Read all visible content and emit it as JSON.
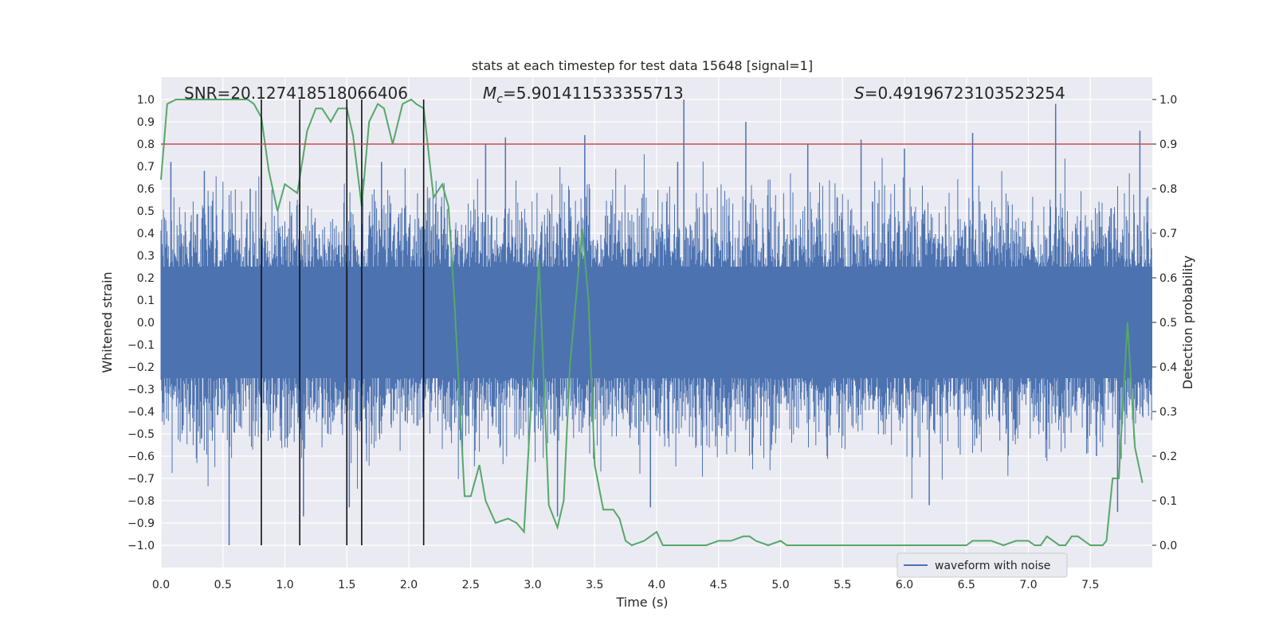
{
  "chart_data": {
    "type": "line",
    "title": "stats at each timestep for test data 15648 [signal=1]",
    "xlabel": "Time (s)",
    "ylabel_left": "Whitened strain",
    "ylabel_right": "Detection probability",
    "xlim": [
      0.0,
      8.0
    ],
    "ylim_left": [
      -1.1,
      1.1
    ],
    "ylim_right": [
      -0.05,
      1.05
    ],
    "x_ticks": [
      "0.0",
      "0.5",
      "1.0",
      "1.5",
      "2.0",
      "2.5",
      "3.0",
      "3.5",
      "4.0",
      "4.5",
      "5.0",
      "5.5",
      "6.0",
      "6.5",
      "7.0",
      "7.5"
    ],
    "y_ticks_left": [
      "−1.0",
      "−0.9",
      "−0.8",
      "−0.7",
      "−0.6",
      "−0.5",
      "−0.4",
      "−0.3",
      "−0.2",
      "−0.1",
      "0.0",
      "0.1",
      "0.2",
      "0.3",
      "0.4",
      "0.5",
      "0.6",
      "0.7",
      "0.8",
      "0.9",
      "1.0"
    ],
    "y_ticks_right": [
      "0.0",
      "0.1",
      "0.2",
      "0.3",
      "0.4",
      "0.5",
      "0.6",
      "0.7",
      "0.8",
      "0.9",
      "1.0"
    ],
    "annotations": {
      "snr_prefix": "SNR=",
      "snr_value": "20.127418518066406",
      "mc_var": "M",
      "mc_sub": "c",
      "mc_value": "=5.901411533355713",
      "s_var": "S",
      "s_value": "=0.49196723103523254"
    },
    "legend": {
      "entry": "waveform with noise",
      "placement": "lower-right"
    },
    "threshold": {
      "value": 0.8,
      "axis": "left",
      "color": "#c44e52"
    },
    "vertical_lines": [
      0.81,
      1.12,
      1.5,
      1.62,
      2.12
    ],
    "waveform": {
      "name": "waveform with noise",
      "color": "#4c72b0",
      "dense_band": [
        -0.25,
        0.25
      ],
      "typical_excursion": 0.55,
      "peak_spikes": [
        {
          "t": 0.55,
          "v": -1.0
        },
        {
          "t": 0.08,
          "v": 0.72
        },
        {
          "t": 0.35,
          "v": 0.68
        },
        {
          "t": 0.72,
          "v": 0.6
        },
        {
          "t": 1.15,
          "v": -0.87
        },
        {
          "t": 1.52,
          "v": -0.83
        },
        {
          "t": 1.78,
          "v": 0.72
        },
        {
          "t": 2.62,
          "v": 0.8
        },
        {
          "t": 2.78,
          "v": 0.83
        },
        {
          "t": 3.2,
          "v": -0.87
        },
        {
          "t": 3.42,
          "v": 0.84
        },
        {
          "t": 3.95,
          "v": -0.83
        },
        {
          "t": 4.22,
          "v": 1.0
        },
        {
          "t": 4.17,
          "v": 0.72
        },
        {
          "t": 4.72,
          "v": 0.9
        },
        {
          "t": 5.22,
          "v": 0.8
        },
        {
          "t": 5.65,
          "v": 0.82
        },
        {
          "t": 6.0,
          "v": 0.78
        },
        {
          "t": 6.2,
          "v": -0.82
        },
        {
          "t": 6.55,
          "v": 0.85
        },
        {
          "t": 7.22,
          "v": 0.98
        },
        {
          "t": 7.55,
          "v": -0.6
        },
        {
          "t": 7.72,
          "v": -0.85
        },
        {
          "t": 7.9,
          "v": 0.86
        }
      ]
    },
    "probability": {
      "name": "detection probability",
      "color": "#55a868",
      "x": [
        0.0,
        0.05,
        0.12,
        0.2,
        0.3,
        0.4,
        0.5,
        0.6,
        0.7,
        0.75,
        0.81,
        0.87,
        0.94,
        1.0,
        1.05,
        1.1,
        1.18,
        1.25,
        1.3,
        1.37,
        1.43,
        1.5,
        1.55,
        1.62,
        1.68,
        1.75,
        1.8,
        1.87,
        1.95,
        2.02,
        2.06,
        2.12,
        2.2,
        2.27,
        2.32,
        2.37,
        2.45,
        2.5,
        2.57,
        2.62,
        2.7,
        2.8,
        2.87,
        2.93,
        3.05,
        3.13,
        3.2,
        3.25,
        3.3,
        3.4,
        3.45,
        3.5,
        3.57,
        3.65,
        3.7,
        3.75,
        3.8,
        3.9,
        4.0,
        4.05,
        4.1,
        4.2,
        4.3,
        4.4,
        4.5,
        4.6,
        4.7,
        4.75,
        4.8,
        4.9,
        5.0,
        5.05,
        5.15,
        5.3,
        5.5,
        5.7,
        5.9,
        6.1,
        6.2,
        6.3,
        6.4,
        6.5,
        6.55,
        6.6,
        6.7,
        6.8,
        6.9,
        7.0,
        7.05,
        7.1,
        7.15,
        7.2,
        7.25,
        7.3,
        7.35,
        7.4,
        7.45,
        7.5,
        7.55,
        7.6,
        7.63,
        7.68,
        7.73,
        7.8,
        7.86,
        7.92
      ],
      "y": [
        0.82,
        0.99,
        1.0,
        1.0,
        1.0,
        1.0,
        1.0,
        1.0,
        1.0,
        0.99,
        0.96,
        0.84,
        0.75,
        0.81,
        0.8,
        0.79,
        0.93,
        0.98,
        0.98,
        0.95,
        0.98,
        0.98,
        0.92,
        0.76,
        0.95,
        0.99,
        0.98,
        0.9,
        0.99,
        1.0,
        0.99,
        0.98,
        0.78,
        0.81,
        0.76,
        0.54,
        0.11,
        0.11,
        0.18,
        0.1,
        0.05,
        0.06,
        0.05,
        0.03,
        0.64,
        0.09,
        0.04,
        0.1,
        0.4,
        0.71,
        0.55,
        0.18,
        0.08,
        0.08,
        0.06,
        0.01,
        0.0,
        0.01,
        0.03,
        0.0,
        0.0,
        0.0,
        0.0,
        0.0,
        0.01,
        0.01,
        0.02,
        0.02,
        0.01,
        0.0,
        0.01,
        0.0,
        0.0,
        0.0,
        0.0,
        0.0,
        0.0,
        0.0,
        0.0,
        0.0,
        0.0,
        0.0,
        0.01,
        0.01,
        0.01,
        0.0,
        0.01,
        0.01,
        0.0,
        0.0,
        0.02,
        0.01,
        0.0,
        0.0,
        0.02,
        0.02,
        0.01,
        0.0,
        0.0,
        0.0,
        0.01,
        0.15,
        0.15,
        0.5,
        0.22,
        0.14
      ]
    }
  }
}
